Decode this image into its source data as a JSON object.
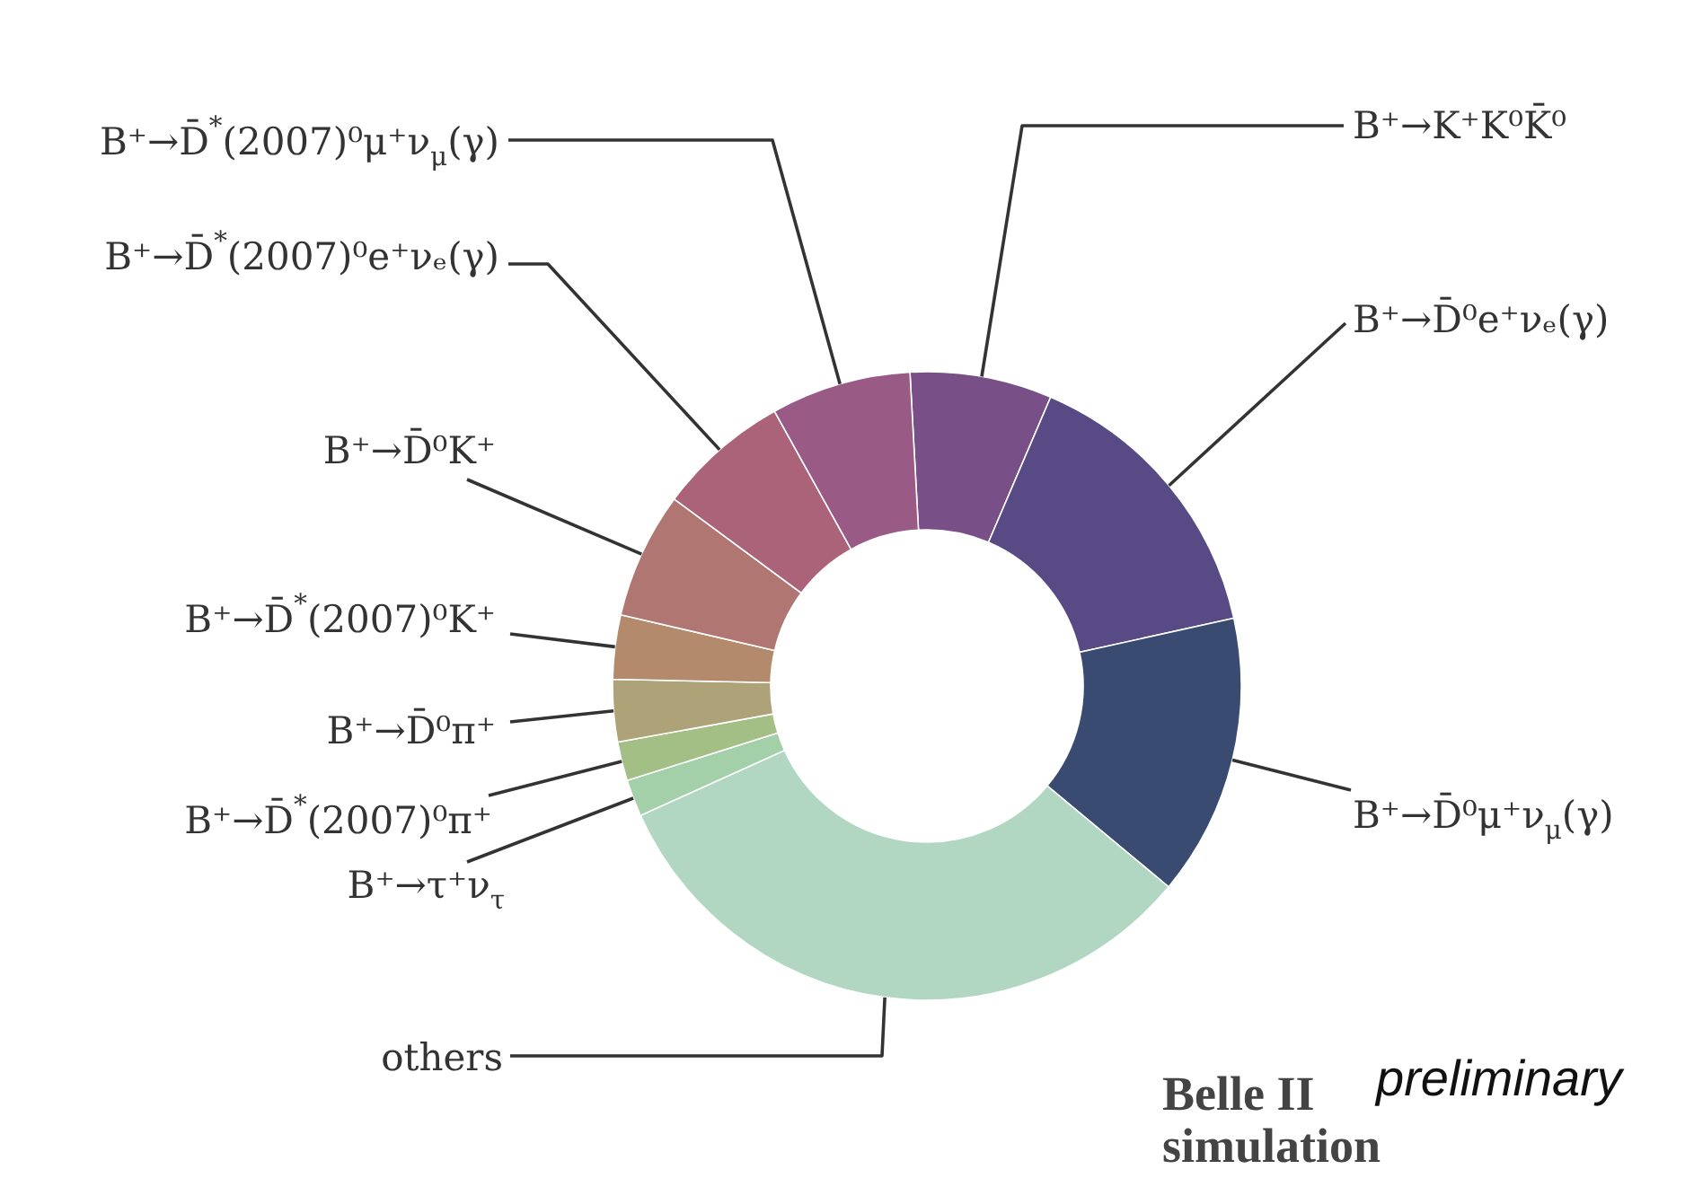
{
  "chart_data": {
    "type": "donut",
    "categories": [
      "B⁺→K⁺K⁰K̄⁰",
      "B⁺→D̄⁰e⁺νₑ(γ)",
      "B⁺→D̄⁰μ⁺ν$_{μ}$(γ)",
      "others",
      "B⁺→τ⁺ν$_{τ}$",
      "B⁺→D̄$^{*}$(2007)⁰π⁺",
      "B⁺→D̄⁰π⁺",
      "B⁺→D̄$^{*}$(2007)⁰K⁺",
      "B⁺→D̄⁰K⁺",
      "B⁺→D̄$^{*}$(2007)⁰e⁺νₑ(γ)",
      "B⁺→D̄$^{*}$(2007)⁰μ⁺ν$_{μ}$(γ)"
    ],
    "values": [
      7.3,
      15.1,
      14.5,
      32.2,
      1.9,
      2.0,
      3.2,
      3.3,
      6.5,
      6.8,
      7.2
    ],
    "colors": [
      "#784f87",
      "#584b85",
      "#3a4b72",
      "#b1d7c3",
      "#a3cfa9",
      "#a3bf86",
      "#ada278",
      "#b38a6c",
      "#b07672",
      "#ab6379",
      "#995a86"
    ],
    "annotations": [
      "Belle II simulation",
      "preliminary"
    ]
  }
}
